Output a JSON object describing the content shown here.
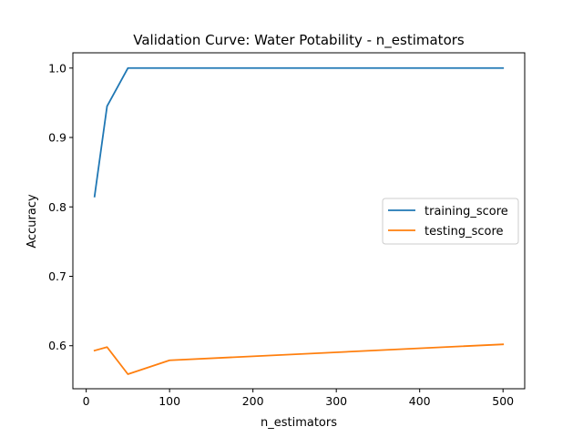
{
  "chart_data": {
    "type": "line",
    "title": "Validation Curve: Water Potability - n_estimators",
    "xlabel": "n_estimators",
    "ylabel": "Accuracy",
    "x": [
      10,
      25,
      50,
      100,
      500
    ],
    "xlim": [
      -16,
      526
    ],
    "ylim": [
      0.538,
      1.022
    ],
    "xticks": [
      0,
      100,
      200,
      300,
      400,
      500
    ],
    "yticks": [
      0.6,
      0.7,
      0.8,
      0.9,
      1.0
    ],
    "xtick_labels": [
      "0",
      "100",
      "200",
      "300",
      "400",
      "500"
    ],
    "ytick_labels": [
      "0.6",
      "0.7",
      "0.8",
      "0.9",
      "1.0"
    ],
    "grid": false,
    "legend_position": "center-right",
    "series": [
      {
        "name": "training_score",
        "color": "#1f77b4",
        "values": [
          0.815,
          0.945,
          1.0,
          1.0,
          1.0
        ]
      },
      {
        "name": "testing_score",
        "color": "#ff7f0e",
        "values": [
          0.593,
          0.598,
          0.559,
          0.579,
          0.602
        ]
      }
    ]
  }
}
